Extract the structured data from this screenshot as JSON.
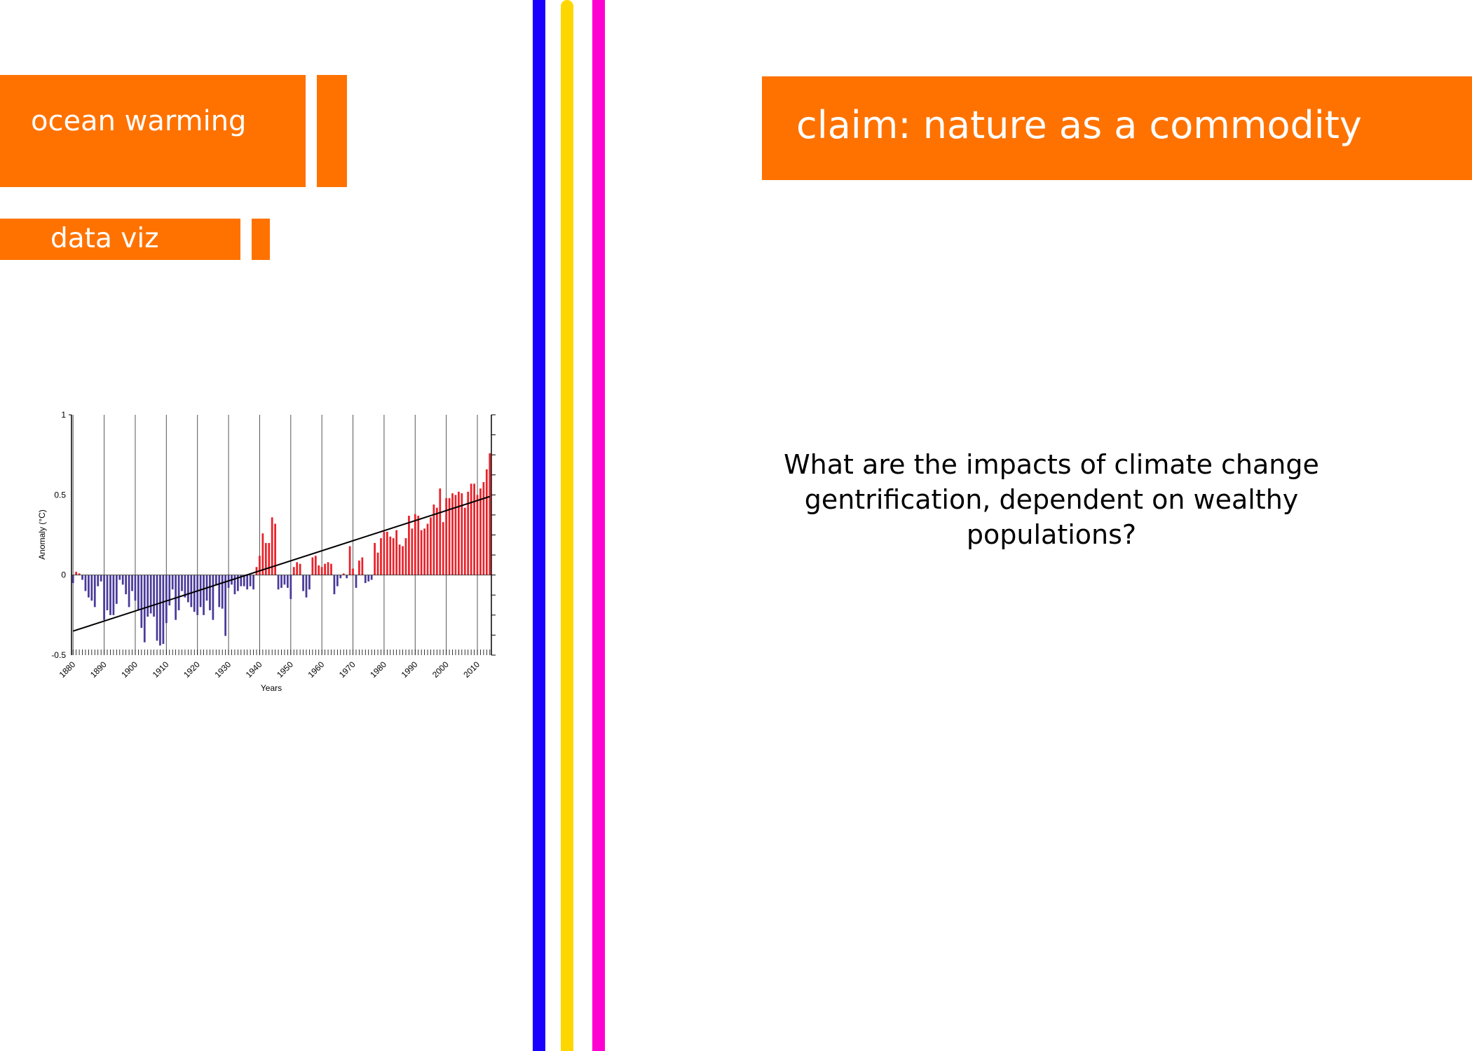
{
  "left_page": {
    "heading": "ocean warming",
    "subheading": "data viz"
  },
  "right_page": {
    "heading": "claim: nature as a commodity",
    "question": "What are the impacts of climate change gentrification, dependent on wealthy populations?"
  },
  "colors": {
    "accent_orange": "#ff7200",
    "stripe_blue": "#1a00ff",
    "stripe_yellow": "#ffd700",
    "stripe_magenta": "#ff00d2",
    "bar_negative": "#4a3a9a",
    "bar_positive": "#e8222a"
  },
  "chart_data": {
    "type": "bar",
    "xlabel": "Years",
    "ylabel": "Anomaly (°C)",
    "ylim": [
      -0.5,
      1
    ],
    "yticks": [
      "1",
      "0.5",
      "0",
      "-0.5"
    ],
    "xticks": [
      "1880",
      "1890",
      "1900",
      "1910",
      "1920",
      "1930",
      "1940",
      "1950",
      "1960",
      "1970",
      "1980",
      "1990",
      "2000",
      "2010"
    ],
    "grid": "vertical lines every 10 years",
    "trend_line": {
      "from": {
        "x": 1880,
        "y": -0.35
      },
      "to": {
        "x": 2014,
        "y": 0.49
      }
    },
    "series": [
      {
        "x": [
          1880,
          1881,
          1882,
          1883,
          1884,
          1885,
          1886,
          1887,
          1888,
          1889,
          1890,
          1891,
          1892,
          1893,
          1894,
          1895,
          1896,
          1897,
          1898,
          1899,
          1900,
          1901,
          1902,
          1903,
          1904,
          1905,
          1906,
          1907,
          1908,
          1909,
          1910,
          1911,
          1912,
          1913,
          1914,
          1915,
          1916,
          1917,
          1918,
          1919,
          1920,
          1921,
          1922,
          1923,
          1924,
          1925,
          1926,
          1927,
          1928,
          1929,
          1930,
          1931,
          1932,
          1933,
          1934,
          1935,
          1936,
          1937,
          1938,
          1939,
          1940,
          1941,
          1942,
          1943,
          1944,
          1945,
          1946,
          1947,
          1948,
          1949,
          1950,
          1951,
          1952,
          1953,
          1954,
          1955,
          1956,
          1957,
          1958,
          1959,
          1960,
          1961,
          1962,
          1963,
          1964,
          1965,
          1966,
          1967,
          1968,
          1969,
          1970,
          1971,
          1972,
          1973,
          1974,
          1975,
          1976,
          1977,
          1978,
          1979,
          1980,
          1981,
          1982,
          1983,
          1984,
          1985,
          1986,
          1987,
          1988,
          1989,
          1990,
          1991,
          1992,
          1993,
          1994,
          1995,
          1996,
          1997,
          1998,
          1999,
          2000,
          2001,
          2002,
          2003,
          2004,
          2005,
          2006,
          2007,
          2008,
          2009,
          2010,
          2011,
          2012,
          2013,
          2014
        ],
        "values": [
          -0.05,
          0.02,
          0.01,
          -0.03,
          -0.1,
          -0.14,
          -0.16,
          -0.2,
          -0.07,
          -0.04,
          -0.28,
          -0.22,
          -0.25,
          -0.25,
          -0.18,
          -0.03,
          -0.06,
          -0.12,
          -0.2,
          -0.1,
          -0.16,
          -0.22,
          -0.33,
          -0.42,
          -0.26,
          -0.24,
          -0.26,
          -0.41,
          -0.44,
          -0.43,
          -0.3,
          -0.19,
          -0.09,
          -0.28,
          -0.22,
          -0.1,
          -0.14,
          -0.17,
          -0.2,
          -0.23,
          -0.25,
          -0.2,
          -0.25,
          -0.16,
          -0.22,
          -0.28,
          -0.06,
          -0.2,
          -0.21,
          -0.38,
          -0.08,
          -0.06,
          -0.12,
          -0.1,
          -0.07,
          -0.07,
          -0.09,
          -0.07,
          -0.09,
          0.05,
          0.12,
          0.26,
          0.2,
          0.2,
          0.36,
          0.32,
          -0.09,
          -0.08,
          -0.06,
          -0.08,
          -0.15,
          0.05,
          0.08,
          0.07,
          -0.1,
          -0.14,
          -0.09,
          0.11,
          0.12,
          0.06,
          0.05,
          0.07,
          0.08,
          0.07,
          -0.12,
          -0.07,
          -0.02,
          0.01,
          -0.02,
          0.18,
          0.04,
          -0.08,
          0.09,
          0.11,
          -0.05,
          -0.04,
          -0.03,
          0.2,
          0.14,
          0.23,
          0.27,
          0.27,
          0.24,
          0.23,
          0.28,
          0.19,
          0.18,
          0.23,
          0.37,
          0.29,
          0.38,
          0.37,
          0.28,
          0.29,
          0.32,
          0.36,
          0.44,
          0.42,
          0.54,
          0.33,
          0.48,
          0.48,
          0.51,
          0.5,
          0.52,
          0.51,
          0.42,
          0.52,
          0.57,
          0.57,
          0.5,
          0.54,
          0.58,
          0.66,
          0.76
        ]
      }
    ]
  }
}
